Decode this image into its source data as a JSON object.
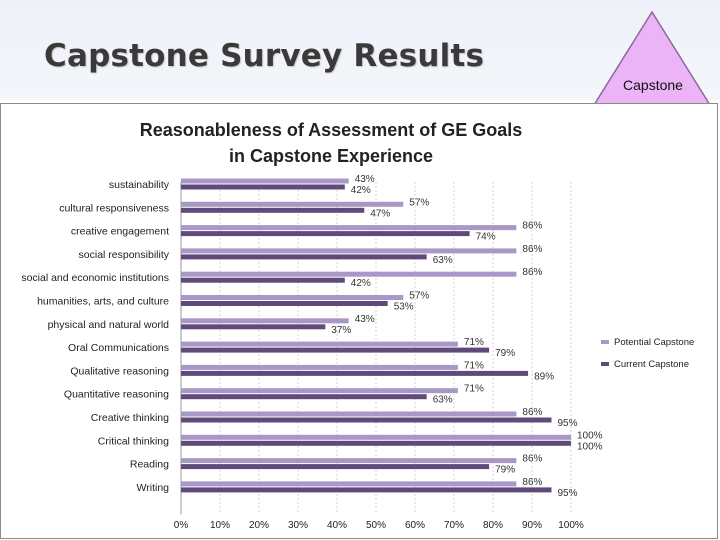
{
  "slide": {
    "title": "Capstone Survey Results",
    "badge_label": "Capstone"
  },
  "colors": {
    "potential": "#a898c8",
    "current": "#604a7b",
    "badge_fill": "#ebb4f6",
    "grid": "#d4d4d4"
  },
  "chart_data": {
    "type": "bar",
    "orientation": "horizontal",
    "title_line1": "Reasonableness  of Assessment of GE Goals",
    "title_line2": "in Capstone Experience",
    "categories": [
      "sustainability",
      "cultural responsiveness",
      "creative engagement",
      "social responsibility",
      "social and economic institutions",
      "humanities, arts, and culture",
      "physical and natural world",
      "Oral Communications",
      "Qualitative reasoning",
      "Quantitative reasoning",
      "Creative thinking",
      "Critical thinking",
      "Reading",
      "Writing"
    ],
    "series": [
      {
        "name": "Potential Capstone",
        "values": [
          43,
          57,
          86,
          86,
          86,
          57,
          43,
          71,
          71,
          71,
          86,
          100,
          86,
          86
        ],
        "labels": [
          "43%",
          "57%",
          "86%",
          "86%",
          "86%",
          "57%",
          "43%",
          "71%",
          "71%",
          "71%",
          "86%",
          "100%",
          "86%",
          "86%"
        ]
      },
      {
        "name": "Current Capstone",
        "values": [
          42,
          47,
          74,
          63,
          42,
          53,
          37,
          79,
          89,
          63,
          95,
          100,
          79,
          95
        ],
        "labels": [
          "42%",
          "47%",
          "74%",
          "63%",
          "42%",
          "53%",
          "37%",
          "79%",
          "89%",
          "63%",
          "95%",
          "100%",
          "79%",
          "95%"
        ]
      }
    ],
    "xlim": [
      0,
      100
    ],
    "xticks": [
      "0%",
      "10%",
      "20%",
      "30%",
      "40%",
      "50%",
      "60%",
      "70%",
      "80%",
      "90%",
      "100%"
    ],
    "legend": [
      "Potential Capstone",
      "Current Capstone"
    ],
    "legend_position": "right",
    "grid": true
  }
}
